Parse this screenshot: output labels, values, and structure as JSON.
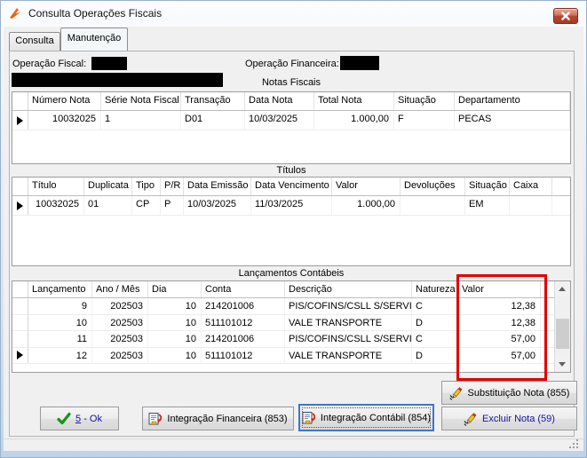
{
  "window": {
    "title": "Consulta Operações Fiscais"
  },
  "colors": {
    "highlight_red": "#e10000",
    "button_navy_text": "#1414a0",
    "close_button_red": "#b64732"
  },
  "tabs": {
    "consulta": "Consulta",
    "manutencao": "Manutenção"
  },
  "fields": {
    "operacao_fiscal_label": "Operação Fiscal:",
    "operacao_financeira_label": "Operação Financeira:"
  },
  "notas_fiscais": {
    "caption": "Notas Fiscais",
    "columns": [
      "Número Nota",
      "Série Nota Fiscal",
      "Transação",
      "Data Nota",
      "Total Nota",
      "Situação",
      "Departamento"
    ],
    "rows": [
      [
        "10032025",
        "1",
        "D01",
        "10/03/2025",
        "1.000,00",
        "F",
        "PECAS"
      ]
    ]
  },
  "titulos": {
    "caption": "Títulos",
    "columns": [
      "Título",
      "Duplicata",
      "Tipo",
      "P/R",
      "Data Emissão",
      "Data Vencimento",
      "Valor",
      "Devoluções",
      "Situação",
      "Caixa"
    ],
    "rows": [
      [
        "10032025",
        "01",
        "CP",
        "P",
        "10/03/2025",
        "11/03/2025",
        "1.000,00",
        "",
        "EM",
        ""
      ]
    ]
  },
  "lancamentos": {
    "caption": "Lançamentos Contábeis",
    "columns": [
      "Lançamento",
      "Ano / Mês",
      "Dia",
      "Conta",
      "Descrição",
      "Natureza",
      "Valor"
    ],
    "rows": [
      [
        "9",
        "202503",
        "10",
        "214201006",
        "PIS/COFINS/CSLL S/SERVICO",
        "C",
        "12,38"
      ],
      [
        "10",
        "202503",
        "10",
        "511101012",
        "VALE TRANSPORTE",
        "D",
        "12,38"
      ],
      [
        "11",
        "202503",
        "10",
        "214201006",
        "PIS/COFINS/CSLL S/SERVICO",
        "C",
        "57,00"
      ],
      [
        "12",
        "202503",
        "10",
        "511101012",
        "VALE TRANSPORTE",
        "D",
        "57,00"
      ]
    ]
  },
  "buttons": {
    "ok_accel": "5",
    "ok_rest": " - Ok",
    "integracao_financeira": "Integração Financeira (853)",
    "integracao_contabil": "Integração Contábil (854)",
    "substituicao_nota": "Substituição Nota (855)",
    "excluir_nota": "Excluir Nota (59)"
  }
}
